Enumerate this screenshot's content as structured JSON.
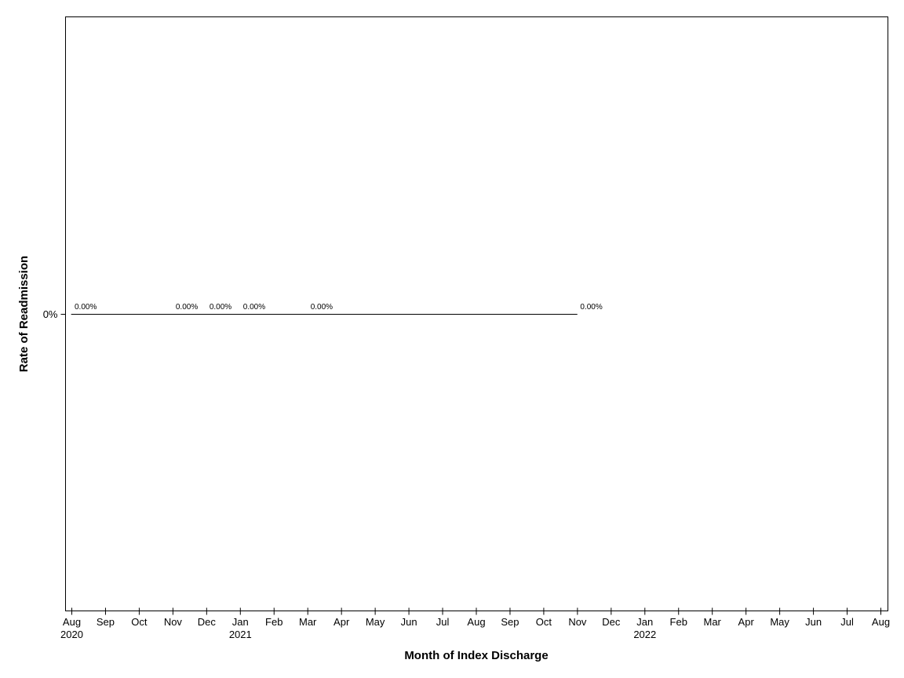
{
  "chart_data": {
    "type": "line",
    "title": "",
    "xlabel": "Month of Index Discharge",
    "ylabel": "Rate of Readmission",
    "y_ticks": [
      {
        "value": 0,
        "label": "0%"
      }
    ],
    "x_range": [
      "2020-08",
      "2022-08"
    ],
    "x_ticks": [
      {
        "date": "2020-08",
        "label": "Aug",
        "year": "2020"
      },
      {
        "date": "2020-09",
        "label": "Sep"
      },
      {
        "date": "2020-10",
        "label": "Oct"
      },
      {
        "date": "2020-11",
        "label": "Nov"
      },
      {
        "date": "2020-12",
        "label": "Dec"
      },
      {
        "date": "2021-01",
        "label": "Jan",
        "year": "2021"
      },
      {
        "date": "2021-02",
        "label": "Feb"
      },
      {
        "date": "2021-03",
        "label": "Mar"
      },
      {
        "date": "2021-04",
        "label": "Apr"
      },
      {
        "date": "2021-05",
        "label": "May"
      },
      {
        "date": "2021-06",
        "label": "Jun"
      },
      {
        "date": "2021-07",
        "label": "Jul"
      },
      {
        "date": "2021-08",
        "label": "Aug"
      },
      {
        "date": "2021-09",
        "label": "Sep"
      },
      {
        "date": "2021-10",
        "label": "Oct"
      },
      {
        "date": "2021-11",
        "label": "Nov"
      },
      {
        "date": "2021-12",
        "label": "Dec"
      },
      {
        "date": "2022-01",
        "label": "Jan",
        "year": "2022"
      },
      {
        "date": "2022-02",
        "label": "Feb"
      },
      {
        "date": "2022-03",
        "label": "Mar"
      },
      {
        "date": "2022-04",
        "label": "Apr"
      },
      {
        "date": "2022-05",
        "label": "May"
      },
      {
        "date": "2022-06",
        "label": "Jun"
      },
      {
        "date": "2022-07",
        "label": "Jul"
      },
      {
        "date": "2022-08",
        "label": "Aug"
      }
    ],
    "series": [
      {
        "color": "#000000",
        "points": [
          {
            "x": "2020-08",
            "y": 0,
            "label": "0.00%"
          },
          {
            "x": "2020-11",
            "y": 0,
            "label": "0.00%"
          },
          {
            "x": "2020-12",
            "y": 0,
            "label": "0.00%"
          },
          {
            "x": "2021-01",
            "y": 0,
            "label": "0.00%"
          },
          {
            "x": "2021-03",
            "y": 0,
            "label": "0.00%"
          },
          {
            "x": "2021-11",
            "y": 0,
            "label": "0.00%"
          }
        ]
      }
    ],
    "grid": false,
    "legend": "none"
  }
}
